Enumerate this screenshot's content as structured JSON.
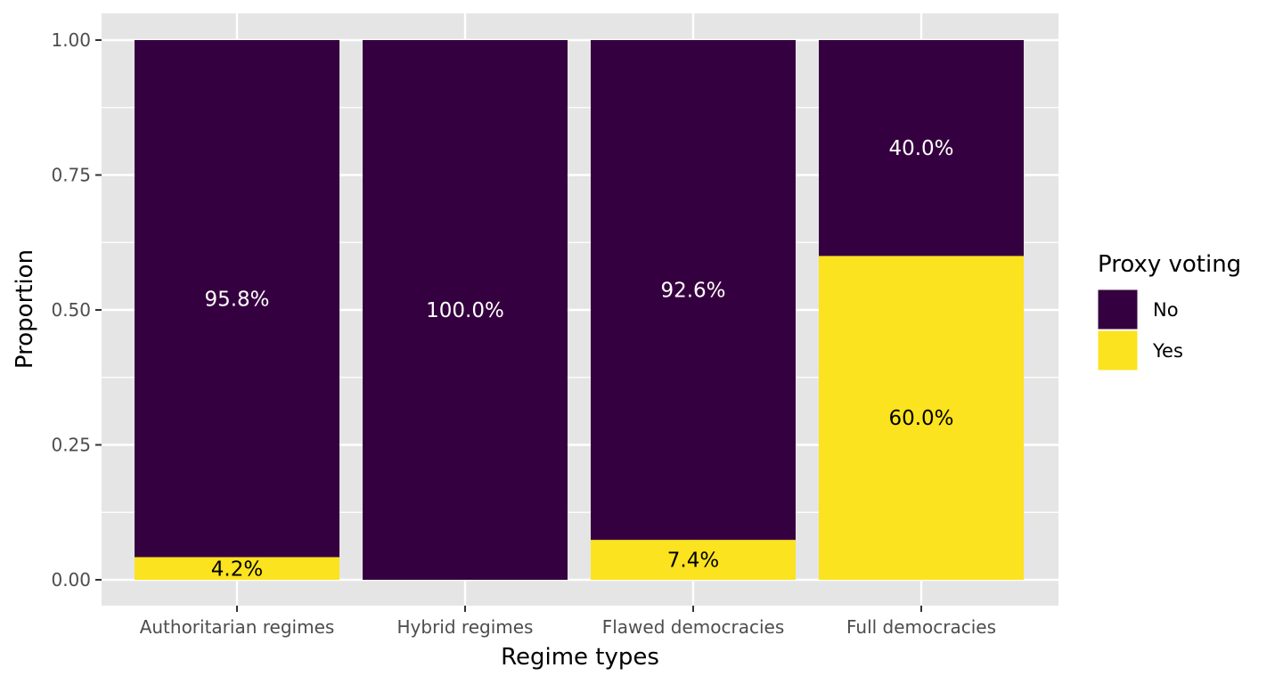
{
  "chart_data": {
    "type": "bar",
    "stacked": true,
    "categories": [
      "Authoritarian regimes",
      "Hybrid regimes",
      "Flawed democracies",
      "Full democracies"
    ],
    "series": [
      {
        "name": "No",
        "color": "#35003f",
        "label_color": "#ffffff",
        "values": [
          0.958,
          1.0,
          0.926,
          0.4
        ],
        "labels": [
          "95.8%",
          "100.0%",
          "92.6%",
          "40.0%"
        ]
      },
      {
        "name": "Yes",
        "color": "#fbe31f",
        "label_color": "#000000",
        "values": [
          0.042,
          0.0,
          0.074,
          0.6
        ],
        "labels": [
          "4.2%",
          "",
          "7.4%",
          "60.0%"
        ]
      }
    ],
    "xlabel": "Regime types",
    "ylabel": "Proportion",
    "ylim": [
      0,
      1
    ],
    "yticks": [
      0,
      0.25,
      0.5,
      0.75,
      1.0
    ],
    "ytick_labels": [
      "0.00",
      "0.25",
      "0.50",
      "0.75",
      "1.00"
    ],
    "legend": {
      "title": "Proxy voting",
      "position": "right"
    },
    "grid": true,
    "panel_background": "#e5e5e5",
    "grid_color": "#ffffff"
  }
}
